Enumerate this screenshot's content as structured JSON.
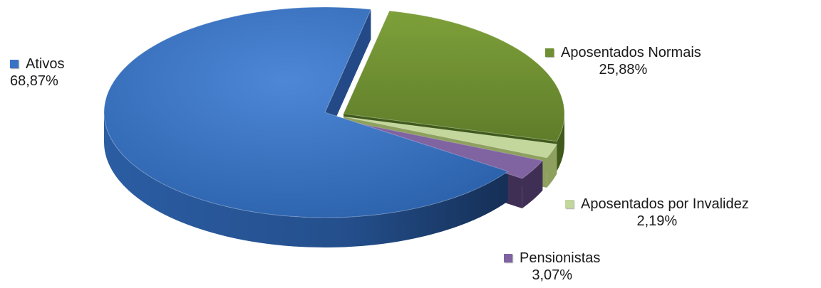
{
  "chart_data": {
    "type": "pie",
    "style": "3d-exploded",
    "slices": [
      {
        "label": "Ativos",
        "value": 68.87,
        "value_label": "68,87%",
        "color": "#3a73c4",
        "side": "#234a86"
      },
      {
        "label": "Aposentados Normais",
        "value": 25.88,
        "value_label": "25,88%",
        "color": "#6f8f33",
        "side": "#3f5a1a"
      },
      {
        "label": "Aposentados por Invalidez",
        "value": 2.19,
        "value_label": "2,19%",
        "color": "#c3d69b",
        "side": "#8ea05e"
      },
      {
        "label": "Pensionistas",
        "value": 3.07,
        "value_label": "3,07%",
        "color": "#8063a1",
        "side": "#3f2f55"
      }
    ],
    "legend_placement": "around"
  }
}
